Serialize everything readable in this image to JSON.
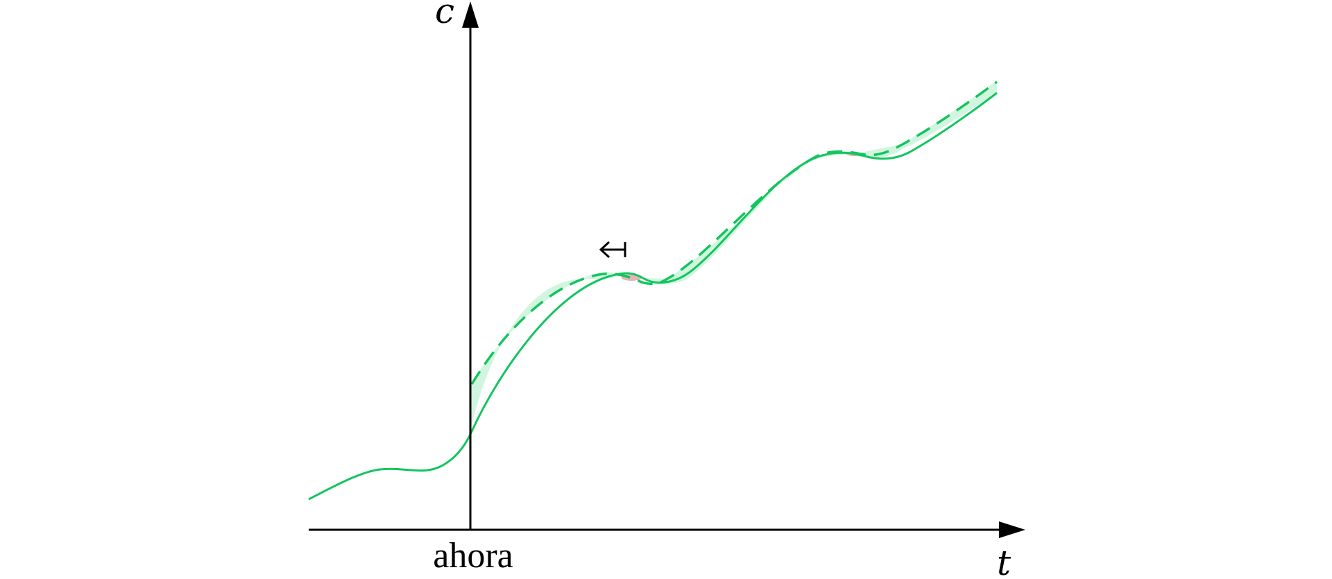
{
  "axes": {
    "y_label": "c",
    "x_label": "t",
    "now_label": "ahora"
  },
  "colors": {
    "curve": "#12c55e",
    "band": "#d2f5df",
    "overlap": "#e6b3b8",
    "axis": "#000000"
  },
  "icons": {
    "marker": "left-arrow-with-bar-icon"
  }
}
